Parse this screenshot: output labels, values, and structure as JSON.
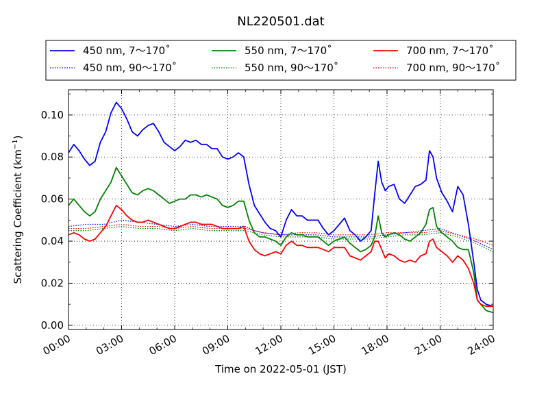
{
  "chart_data": {
    "type": "line",
    "title": "NL220501.dat",
    "xlabel": "Time on 2022-05-01 (JST)",
    "ylabel": "Scattering Coefficient (km",
    "ylabel_exp": "−1",
    "ylabel_close": ")",
    "xlim": [
      0,
      24
    ],
    "ylim": [
      -0.002,
      0.112
    ],
    "x_ticks": [
      0,
      3,
      6,
      9,
      12,
      15,
      18,
      21,
      24
    ],
    "x_tick_labels": [
      "00:00",
      "03:00",
      "06:00",
      "09:00",
      "12:00",
      "15:00",
      "18:00",
      "21:00",
      "24:00"
    ],
    "y_ticks": [
      0.0,
      0.02,
      0.04,
      0.06,
      0.08,
      0.1
    ],
    "y_tick_labels": [
      "0.00",
      "0.02",
      "0.04",
      "0.06",
      "0.08",
      "0.10"
    ],
    "grid": true,
    "legend_placement": "top",
    "series": [
      {
        "name": "450 nm, 7～170˚",
        "color": "#0000ff",
        "style": "solid",
        "x": [
          0,
          0.3,
          0.6,
          0.9,
          1.2,
          1.5,
          1.8,
          2.1,
          2.4,
          2.7,
          3.0,
          3.3,
          3.6,
          3.9,
          4.2,
          4.5,
          4.8,
          5.1,
          5.4,
          5.7,
          6.0,
          6.3,
          6.6,
          6.9,
          7.2,
          7.5,
          7.8,
          8.1,
          8.4,
          8.7,
          9.0,
          9.3,
          9.6,
          9.9,
          10.2,
          10.5,
          10.8,
          11.1,
          11.4,
          11.7,
          12.0,
          12.3,
          12.6,
          12.9,
          13.2,
          13.5,
          13.8,
          14.1,
          14.4,
          14.7,
          15.0,
          15.3,
          15.6,
          15.9,
          16.2,
          16.5,
          16.8,
          17.1,
          17.3,
          17.5,
          17.7,
          17.9,
          18.1,
          18.4,
          18.7,
          19.0,
          19.3,
          19.6,
          19.9,
          20.2,
          20.4,
          20.6,
          20.8,
          21.1,
          21.4,
          21.7,
          22.0,
          22.3,
          22.6,
          22.9,
          23.1,
          23.3,
          23.6,
          24.0
        ],
        "y": [
          0.082,
          0.086,
          0.083,
          0.079,
          0.076,
          0.078,
          0.087,
          0.092,
          0.101,
          0.106,
          0.103,
          0.098,
          0.092,
          0.09,
          0.093,
          0.095,
          0.096,
          0.092,
          0.087,
          0.085,
          0.083,
          0.085,
          0.088,
          0.087,
          0.088,
          0.086,
          0.086,
          0.084,
          0.084,
          0.08,
          0.079,
          0.08,
          0.082,
          0.08,
          0.067,
          0.057,
          0.053,
          0.049,
          0.046,
          0.045,
          0.042,
          0.05,
          0.055,
          0.052,
          0.052,
          0.05,
          0.05,
          0.05,
          0.046,
          0.043,
          0.045,
          0.048,
          0.051,
          0.045,
          0.043,
          0.04,
          0.042,
          0.045,
          0.062,
          0.078,
          0.068,
          0.064,
          0.066,
          0.067,
          0.06,
          0.058,
          0.062,
          0.066,
          0.067,
          0.069,
          0.083,
          0.08,
          0.07,
          0.063,
          0.059,
          0.054,
          0.066,
          0.062,
          0.048,
          0.03,
          0.017,
          0.012,
          0.01,
          0.009
        ]
      },
      {
        "name": "450 nm, 90～170˚",
        "color": "#0000ff",
        "style": "dotted",
        "x": [
          0,
          1,
          2,
          3,
          4,
          5,
          6,
          7,
          8,
          9,
          10,
          10.5,
          11,
          12,
          13,
          14,
          15,
          16,
          17,
          18,
          19,
          20,
          21,
          22,
          23,
          24
        ],
        "y": [
          0.047,
          0.048,
          0.048,
          0.05,
          0.049,
          0.048,
          0.047,
          0.048,
          0.047,
          0.047,
          0.047,
          0.045,
          0.044,
          0.043,
          0.043,
          0.043,
          0.042,
          0.042,
          0.042,
          0.043,
          0.044,
          0.045,
          0.046,
          0.043,
          0.04,
          0.036
        ]
      },
      {
        "name": "550 nm, 7～170˚",
        "color": "#008000",
        "style": "solid",
        "x": [
          0,
          0.3,
          0.6,
          0.9,
          1.2,
          1.5,
          1.8,
          2.1,
          2.4,
          2.7,
          3.0,
          3.3,
          3.6,
          3.9,
          4.2,
          4.5,
          4.8,
          5.1,
          5.4,
          5.7,
          6.0,
          6.3,
          6.6,
          6.9,
          7.2,
          7.5,
          7.8,
          8.1,
          8.4,
          8.7,
          9.0,
          9.3,
          9.6,
          9.9,
          10.2,
          10.5,
          10.8,
          11.1,
          11.4,
          11.7,
          12.0,
          12.3,
          12.6,
          12.9,
          13.2,
          13.5,
          13.8,
          14.1,
          14.4,
          14.7,
          15.0,
          15.3,
          15.6,
          15.9,
          16.2,
          16.5,
          16.8,
          17.1,
          17.3,
          17.5,
          17.7,
          17.9,
          18.1,
          18.4,
          18.7,
          19.0,
          19.3,
          19.6,
          19.9,
          20.2,
          20.4,
          20.6,
          20.8,
          21.1,
          21.4,
          21.7,
          22.0,
          22.3,
          22.6,
          22.9,
          23.1,
          23.3,
          23.6,
          24.0
        ],
        "y": [
          0.057,
          0.06,
          0.057,
          0.054,
          0.052,
          0.054,
          0.06,
          0.064,
          0.068,
          0.075,
          0.071,
          0.067,
          0.063,
          0.062,
          0.064,
          0.065,
          0.064,
          0.062,
          0.06,
          0.058,
          0.059,
          0.06,
          0.06,
          0.062,
          0.062,
          0.061,
          0.062,
          0.061,
          0.06,
          0.057,
          0.056,
          0.057,
          0.059,
          0.059,
          0.05,
          0.044,
          0.042,
          0.042,
          0.041,
          0.04,
          0.038,
          0.042,
          0.044,
          0.043,
          0.043,
          0.042,
          0.042,
          0.042,
          0.04,
          0.038,
          0.04,
          0.041,
          0.042,
          0.039,
          0.037,
          0.035,
          0.036,
          0.038,
          0.042,
          0.052,
          0.044,
          0.042,
          0.043,
          0.044,
          0.043,
          0.041,
          0.04,
          0.042,
          0.044,
          0.048,
          0.055,
          0.056,
          0.047,
          0.044,
          0.042,
          0.04,
          0.037,
          0.036,
          0.036,
          0.025,
          0.012,
          0.01,
          0.007,
          0.006
        ]
      },
      {
        "name": "550 nm, 90～170˚",
        "color": "#008000",
        "style": "dotted",
        "x": [
          0,
          1,
          2,
          3,
          4,
          5,
          6,
          7,
          8,
          9,
          10,
          10.5,
          11,
          12,
          13,
          14,
          15,
          16,
          17,
          18,
          19,
          20,
          21,
          22,
          23,
          24
        ],
        "y": [
          0.045,
          0.045,
          0.046,
          0.047,
          0.046,
          0.046,
          0.045,
          0.046,
          0.045,
          0.045,
          0.045,
          0.044,
          0.043,
          0.042,
          0.042,
          0.042,
          0.041,
          0.041,
          0.041,
          0.042,
          0.043,
          0.043,
          0.044,
          0.042,
          0.039,
          0.035
        ]
      },
      {
        "name": "700 nm, 7～170˚",
        "color": "#ff0000",
        "style": "solid",
        "x": [
          0,
          0.3,
          0.6,
          0.9,
          1.2,
          1.5,
          1.8,
          2.1,
          2.4,
          2.7,
          3.0,
          3.3,
          3.6,
          3.9,
          4.2,
          4.5,
          4.8,
          5.1,
          5.4,
          5.7,
          6.0,
          6.3,
          6.6,
          6.9,
          7.2,
          7.5,
          7.8,
          8.1,
          8.4,
          8.7,
          9.0,
          9.3,
          9.6,
          9.9,
          10.2,
          10.5,
          10.8,
          11.1,
          11.4,
          11.7,
          12.0,
          12.3,
          12.6,
          12.9,
          13.2,
          13.5,
          13.8,
          14.1,
          14.4,
          14.7,
          15.0,
          15.3,
          15.6,
          15.9,
          16.2,
          16.5,
          16.8,
          17.1,
          17.3,
          17.5,
          17.7,
          17.9,
          18.1,
          18.4,
          18.7,
          19.0,
          19.3,
          19.6,
          19.9,
          20.2,
          20.4,
          20.6,
          20.8,
          21.1,
          21.4,
          21.7,
          22.0,
          22.3,
          22.6,
          22.9,
          23.1,
          23.3,
          23.6,
          24.0
        ],
        "y": [
          0.043,
          0.044,
          0.043,
          0.041,
          0.04,
          0.041,
          0.044,
          0.047,
          0.052,
          0.057,
          0.055,
          0.052,
          0.05,
          0.049,
          0.049,
          0.05,
          0.049,
          0.048,
          0.047,
          0.046,
          0.046,
          0.047,
          0.048,
          0.049,
          0.049,
          0.048,
          0.048,
          0.048,
          0.047,
          0.046,
          0.046,
          0.046,
          0.046,
          0.047,
          0.04,
          0.036,
          0.034,
          0.033,
          0.034,
          0.035,
          0.034,
          0.038,
          0.04,
          0.038,
          0.038,
          0.037,
          0.037,
          0.037,
          0.036,
          0.035,
          0.037,
          0.037,
          0.037,
          0.033,
          0.032,
          0.031,
          0.033,
          0.035,
          0.04,
          0.04,
          0.036,
          0.032,
          0.034,
          0.033,
          0.031,
          0.03,
          0.031,
          0.03,
          0.033,
          0.034,
          0.04,
          0.041,
          0.037,
          0.035,
          0.033,
          0.03,
          0.033,
          0.031,
          0.027,
          0.02,
          0.012,
          0.01,
          0.009,
          0.009
        ]
      },
      {
        "name": "700 nm, 90～170˚",
        "color": "#ff0000",
        "style": "dotted",
        "x": [
          0,
          1,
          2,
          3,
          4,
          5,
          6,
          7,
          8,
          9,
          10,
          10.5,
          11,
          12,
          13,
          14,
          15,
          16,
          17,
          18,
          19,
          20,
          21,
          22,
          23,
          24
        ],
        "y": [
          0.046,
          0.046,
          0.047,
          0.048,
          0.047,
          0.047,
          0.046,
          0.047,
          0.046,
          0.046,
          0.046,
          0.045,
          0.044,
          0.043,
          0.044,
          0.044,
          0.043,
          0.043,
          0.043,
          0.044,
          0.044,
          0.044,
          0.045,
          0.043,
          0.041,
          0.038
        ]
      }
    ]
  }
}
